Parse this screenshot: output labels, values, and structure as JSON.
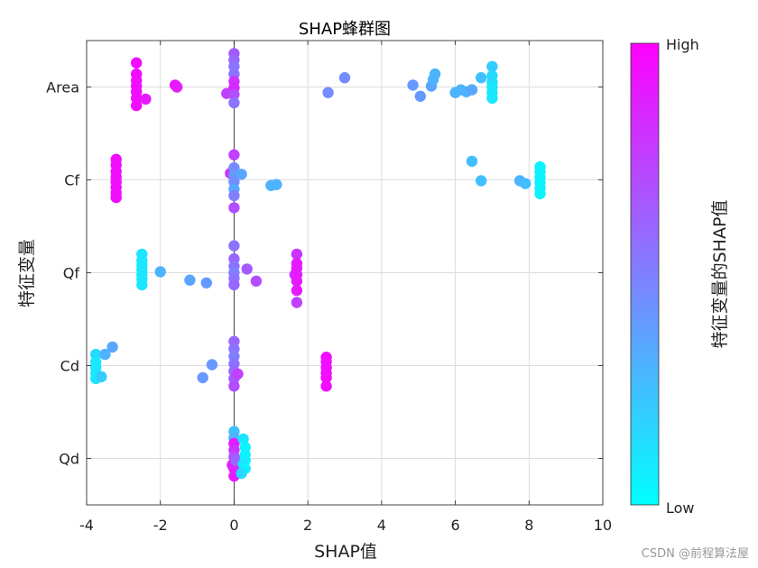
{
  "chart_data": {
    "type": "scatter",
    "title": "SHAP蜂群图",
    "xlabel": "SHAP值",
    "ylabel": "特征变量",
    "xlim": [
      -4,
      10
    ],
    "xticks": [
      -4,
      -2,
      0,
      2,
      4,
      6,
      8,
      10
    ],
    "xtick_labels": [
      "-4",
      "-2",
      "0",
      "2",
      "4",
      "6",
      "8",
      "10"
    ],
    "categories": [
      "Area",
      "Cf",
      "Qf",
      "Cd",
      "Qd"
    ],
    "grid": true,
    "colorbar": {
      "label": "特征变量的SHAP值",
      "high_label": "High",
      "low_label": "Low",
      "low_color": "#00ffff",
      "high_color": "#ff00ff"
    },
    "series": [
      {
        "feature": "Area",
        "points": [
          {
            "x": -2.65,
            "dy": 0.26,
            "c": 0.95
          },
          {
            "x": -2.65,
            "dy": 0.14,
            "c": 0.95
          },
          {
            "x": -2.65,
            "dy": 0.07,
            "c": 0.95
          },
          {
            "x": -2.65,
            "dy": 0.01,
            "c": 0.95
          },
          {
            "x": -2.65,
            "dy": -0.05,
            "c": 0.95
          },
          {
            "x": -2.65,
            "dy": -0.12,
            "c": 0.95
          },
          {
            "x": -2.65,
            "dy": -0.2,
            "c": 0.95
          },
          {
            "x": -2.4,
            "dy": -0.13,
            "c": 0.9
          },
          {
            "x": -1.6,
            "dy": 0.02,
            "c": 0.92
          },
          {
            "x": -1.55,
            "dy": 0.0,
            "c": 0.9
          },
          {
            "x": -0.2,
            "dy": -0.07,
            "c": 0.75
          },
          {
            "x": 0.0,
            "dy": 0.36,
            "c": 0.65
          },
          {
            "x": 0.0,
            "dy": 0.29,
            "c": 0.6
          },
          {
            "x": 0.0,
            "dy": 0.22,
            "c": 0.55
          },
          {
            "x": 0.0,
            "dy": 0.14,
            "c": 0.55
          },
          {
            "x": 0.0,
            "dy": 0.06,
            "c": 0.8
          },
          {
            "x": 0.0,
            "dy": -0.01,
            "c": 0.85
          },
          {
            "x": 0.0,
            "dy": -0.08,
            "c": 0.7
          },
          {
            "x": 0.0,
            "dy": -0.17,
            "c": 0.55
          },
          {
            "x": 2.55,
            "dy": -0.06,
            "c": 0.45
          },
          {
            "x": 3.0,
            "dy": 0.1,
            "c": 0.45
          },
          {
            "x": 4.85,
            "dy": 0.02,
            "c": 0.4
          },
          {
            "x": 5.05,
            "dy": -0.1,
            "c": 0.4
          },
          {
            "x": 5.35,
            "dy": 0.01,
            "c": 0.35
          },
          {
            "x": 5.4,
            "dy": 0.08,
            "c": 0.3
          },
          {
            "x": 5.45,
            "dy": 0.14,
            "c": 0.3
          },
          {
            "x": 6.0,
            "dy": -0.06,
            "c": 0.3
          },
          {
            "x": 6.15,
            "dy": -0.03,
            "c": 0.3
          },
          {
            "x": 6.3,
            "dy": -0.05,
            "c": 0.3
          },
          {
            "x": 6.45,
            "dy": -0.03,
            "c": 0.35
          },
          {
            "x": 6.7,
            "dy": 0.1,
            "c": 0.25
          },
          {
            "x": 7.0,
            "dy": 0.22,
            "c": 0.2
          },
          {
            "x": 7.0,
            "dy": 0.12,
            "c": 0.15
          },
          {
            "x": 7.0,
            "dy": 0.05,
            "c": 0.15
          },
          {
            "x": 7.0,
            "dy": 0.0,
            "c": 0.1
          },
          {
            "x": 7.0,
            "dy": -0.06,
            "c": 0.1
          },
          {
            "x": 7.0,
            "dy": -0.12,
            "c": 0.1
          }
        ]
      },
      {
        "feature": "Cf",
        "points": [
          {
            "x": -3.2,
            "dy": 0.22,
            "c": 0.95
          },
          {
            "x": -3.2,
            "dy": 0.16,
            "c": 0.95
          },
          {
            "x": -3.2,
            "dy": 0.09,
            "c": 0.95
          },
          {
            "x": -3.2,
            "dy": 0.03,
            "c": 0.95
          },
          {
            "x": -3.2,
            "dy": -0.02,
            "c": 0.95
          },
          {
            "x": -3.2,
            "dy": -0.08,
            "c": 0.95
          },
          {
            "x": -3.2,
            "dy": -0.14,
            "c": 0.95
          },
          {
            "x": -3.2,
            "dy": -0.19,
            "c": 0.95
          },
          {
            "x": -0.1,
            "dy": 0.07,
            "c": 0.8
          },
          {
            "x": 0.0,
            "dy": 0.27,
            "c": 0.75
          },
          {
            "x": 0.0,
            "dy": 0.13,
            "c": 0.45
          },
          {
            "x": 0.0,
            "dy": 0.05,
            "c": 0.4
          },
          {
            "x": 0.0,
            "dy": -0.02,
            "c": 0.45
          },
          {
            "x": 0.0,
            "dy": -0.1,
            "c": 0.35
          },
          {
            "x": 0.0,
            "dy": -0.17,
            "c": 0.5
          },
          {
            "x": 0.0,
            "dy": -0.3,
            "c": 0.7
          },
          {
            "x": 0.2,
            "dy": 0.06,
            "c": 0.35
          },
          {
            "x": 1.0,
            "dy": -0.06,
            "c": 0.3
          },
          {
            "x": 1.15,
            "dy": -0.05,
            "c": 0.3
          },
          {
            "x": 6.45,
            "dy": 0.2,
            "c": 0.25
          },
          {
            "x": 6.7,
            "dy": -0.01,
            "c": 0.25
          },
          {
            "x": 7.75,
            "dy": -0.01,
            "c": 0.3
          },
          {
            "x": 7.9,
            "dy": -0.04,
            "c": 0.25
          },
          {
            "x": 8.3,
            "dy": 0.14,
            "c": 0.05
          },
          {
            "x": 8.3,
            "dy": 0.09,
            "c": 0.05
          },
          {
            "x": 8.3,
            "dy": 0.03,
            "c": 0.05
          },
          {
            "x": 8.3,
            "dy": -0.03,
            "c": 0.05
          },
          {
            "x": 8.3,
            "dy": -0.09,
            "c": 0.05
          },
          {
            "x": 8.3,
            "dy": -0.15,
            "c": 0.05
          }
        ]
      },
      {
        "feature": "Qf",
        "points": [
          {
            "x": -2.5,
            "dy": 0.2,
            "c": 0.1
          },
          {
            "x": -2.5,
            "dy": 0.13,
            "c": 0.1
          },
          {
            "x": -2.5,
            "dy": 0.08,
            "c": 0.1
          },
          {
            "x": -2.5,
            "dy": 0.03,
            "c": 0.1
          },
          {
            "x": -2.5,
            "dy": -0.02,
            "c": 0.1
          },
          {
            "x": -2.5,
            "dy": -0.07,
            "c": 0.1
          },
          {
            "x": -2.5,
            "dy": -0.13,
            "c": 0.1
          },
          {
            "x": -2.0,
            "dy": 0.01,
            "c": 0.3
          },
          {
            "x": -1.2,
            "dy": -0.08,
            "c": 0.35
          },
          {
            "x": -0.75,
            "dy": -0.11,
            "c": 0.4
          },
          {
            "x": 0.0,
            "dy": 0.29,
            "c": 0.55
          },
          {
            "x": 0.0,
            "dy": 0.15,
            "c": 0.6
          },
          {
            "x": 0.0,
            "dy": 0.07,
            "c": 0.55
          },
          {
            "x": 0.0,
            "dy": 0.0,
            "c": 0.5
          },
          {
            "x": 0.0,
            "dy": -0.06,
            "c": 0.55
          },
          {
            "x": 0.0,
            "dy": -0.13,
            "c": 0.6
          },
          {
            "x": 0.35,
            "dy": 0.04,
            "c": 0.65
          },
          {
            "x": 0.6,
            "dy": -0.09,
            "c": 0.7
          },
          {
            "x": 1.65,
            "dy": -0.02,
            "c": 0.75
          },
          {
            "x": 1.7,
            "dy": 0.2,
            "c": 0.8
          },
          {
            "x": 1.7,
            "dy": 0.1,
            "c": 0.9
          },
          {
            "x": 1.7,
            "dy": 0.05,
            "c": 0.9
          },
          {
            "x": 1.7,
            "dy": -0.02,
            "c": 0.9
          },
          {
            "x": 1.7,
            "dy": -0.09,
            "c": 0.9
          },
          {
            "x": 1.7,
            "dy": -0.19,
            "c": 0.9
          },
          {
            "x": 1.7,
            "dy": -0.32,
            "c": 0.75
          }
        ]
      },
      {
        "feature": "Cd",
        "points": [
          {
            "x": -3.75,
            "dy": 0.12,
            "c": 0.15
          },
          {
            "x": -3.75,
            "dy": 0.04,
            "c": 0.1
          },
          {
            "x": -3.75,
            "dy": -0.02,
            "c": 0.1
          },
          {
            "x": -3.75,
            "dy": -0.08,
            "c": 0.1
          },
          {
            "x": -3.75,
            "dy": -0.14,
            "c": 0.1
          },
          {
            "x": -3.6,
            "dy": -0.12,
            "c": 0.2
          },
          {
            "x": -3.5,
            "dy": 0.12,
            "c": 0.3
          },
          {
            "x": -3.3,
            "dy": 0.2,
            "c": 0.35
          },
          {
            "x": -0.85,
            "dy": -0.13,
            "c": 0.4
          },
          {
            "x": -0.6,
            "dy": 0.01,
            "c": 0.4
          },
          {
            "x": 0.0,
            "dy": 0.26,
            "c": 0.6
          },
          {
            "x": 0.0,
            "dy": 0.18,
            "c": 0.55
          },
          {
            "x": 0.0,
            "dy": 0.1,
            "c": 0.5
          },
          {
            "x": 0.0,
            "dy": 0.02,
            "c": 0.55
          },
          {
            "x": 0.0,
            "dy": -0.06,
            "c": 0.6
          },
          {
            "x": 0.0,
            "dy": -0.14,
            "c": 0.65
          },
          {
            "x": 0.0,
            "dy": -0.22,
            "c": 0.7
          },
          {
            "x": 0.1,
            "dy": -0.09,
            "c": 0.75
          },
          {
            "x": 2.5,
            "dy": 0.09,
            "c": 0.95
          },
          {
            "x": 2.5,
            "dy": 0.04,
            "c": 0.95
          },
          {
            "x": 2.5,
            "dy": -0.02,
            "c": 0.95
          },
          {
            "x": 2.5,
            "dy": -0.08,
            "c": 0.95
          },
          {
            "x": 2.5,
            "dy": -0.13,
            "c": 0.95
          },
          {
            "x": 2.5,
            "dy": -0.22,
            "c": 0.95
          }
        ]
      },
      {
        "feature": "Qd",
        "points": [
          {
            "x": 0.0,
            "dy": 0.29,
            "c": 0.25
          },
          {
            "x": 0.0,
            "dy": 0.22,
            "c": 0.3
          },
          {
            "x": 0.0,
            "dy": 0.16,
            "c": 0.9
          },
          {
            "x": 0.0,
            "dy": 0.09,
            "c": 0.8
          },
          {
            "x": 0.0,
            "dy": 0.02,
            "c": 0.7
          },
          {
            "x": 0.0,
            "dy": -0.04,
            "c": 0.9
          },
          {
            "x": 0.0,
            "dy": -0.11,
            "c": 0.95
          },
          {
            "x": 0.0,
            "dy": -0.19,
            "c": 0.9
          },
          {
            "x": -0.05,
            "dy": -0.07,
            "c": 0.85
          },
          {
            "x": 0.05,
            "dy": -0.02,
            "c": 0.6
          },
          {
            "x": 0.25,
            "dy": 0.21,
            "c": 0.1
          },
          {
            "x": 0.3,
            "dy": 0.12,
            "c": 0.05
          },
          {
            "x": 0.3,
            "dy": 0.04,
            "c": 0.05
          },
          {
            "x": 0.3,
            "dy": -0.02,
            "c": 0.05
          },
          {
            "x": 0.25,
            "dy": -0.06,
            "c": 0.1
          },
          {
            "x": 0.3,
            "dy": -0.11,
            "c": 0.05
          },
          {
            "x": 0.2,
            "dy": -0.16,
            "c": 0.15
          }
        ]
      }
    ]
  },
  "watermark": "CSDN @前程算法屋"
}
